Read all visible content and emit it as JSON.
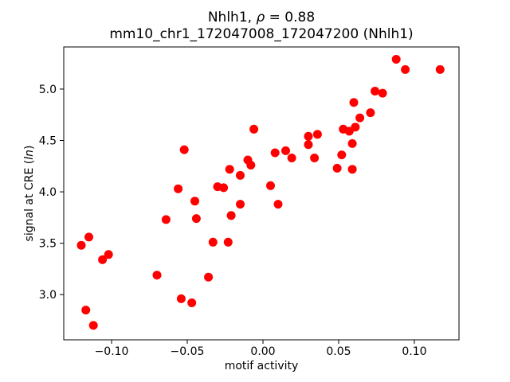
{
  "figure": {
    "title_line1": {
      "prefix": "Nhlh1, ",
      "rho": "ρ",
      "suffix": " = 0.88"
    },
    "title_line2": "mm10_chr1_172047008_172047200 (Nhlh1)",
    "xlabel": "motif activity",
    "ylabel": {
      "prefix": "signal at CRE (",
      "italic": "ln",
      "suffix": ")"
    },
    "colors": {
      "marker": "#ff0000",
      "axis": "#000000",
      "background": "#ffffff",
      "text": "#000000"
    }
  },
  "chart_data": {
    "type": "scatter",
    "title": "Nhlh1, ρ = 0.88",
    "subtitle": "mm10_chr1_172047008_172047200 (Nhlh1)",
    "xlabel": "motif activity",
    "ylabel": "signal at CRE (ln)",
    "correlation_rho": 0.88,
    "grid": false,
    "legend": null,
    "xlim": [
      -0.1316,
      0.1295
    ],
    "ylim": [
      2.56,
      5.41
    ],
    "xticks": {
      "values": [
        -0.1,
        -0.05,
        0.0,
        0.05,
        0.1
      ],
      "labels": [
        "−0.10",
        "−0.05",
        "0.00",
        "0.05",
        "0.10"
      ]
    },
    "yticks": {
      "values": [
        3.0,
        3.5,
        4.0,
        4.5,
        5.0
      ],
      "labels": [
        "3.0",
        "3.5",
        "4.0",
        "4.5",
        "5.0"
      ]
    },
    "marker": {
      "shape": "circle",
      "color": "#ff0000",
      "radius_px": 5.5
    },
    "points": [
      [
        -0.064,
        3.73
      ],
      [
        -0.115,
        3.56
      ],
      [
        -0.12,
        3.48
      ],
      [
        -0.102,
        3.39
      ],
      [
        -0.106,
        3.34
      ],
      [
        -0.07,
        3.19
      ],
      [
        -0.054,
        2.96
      ],
      [
        -0.047,
        2.92
      ],
      [
        -0.117,
        2.85
      ],
      [
        -0.112,
        2.7
      ],
      [
        -0.045,
        3.91
      ],
      [
        -0.044,
        3.74
      ],
      [
        -0.015,
        3.88
      ],
      [
        0.01,
        3.88
      ],
      [
        -0.021,
        3.77
      ],
      [
        -0.033,
        3.51
      ],
      [
        -0.023,
        3.51
      ],
      [
        -0.036,
        3.17
      ],
      [
        -0.006,
        4.61
      ],
      [
        0.03,
        4.54
      ],
      [
        0.036,
        4.56
      ],
      [
        0.03,
        4.46
      ],
      [
        0.008,
        4.38
      ],
      [
        0.015,
        4.4
      ],
      [
        0.019,
        4.33
      ],
      [
        0.034,
        4.33
      ],
      [
        -0.01,
        4.31
      ],
      [
        -0.008,
        4.26
      ],
      [
        -0.022,
        4.22
      ],
      [
        -0.015,
        4.16
      ],
      [
        -0.03,
        4.05
      ],
      [
        -0.026,
        4.04
      ],
      [
        0.005,
        4.06
      ],
      [
        0.088,
        5.29
      ],
      [
        0.094,
        5.19
      ],
      [
        0.117,
        5.19
      ],
      [
        0.074,
        4.98
      ],
      [
        0.079,
        4.96
      ],
      [
        0.06,
        4.87
      ],
      [
        0.071,
        4.77
      ],
      [
        0.064,
        4.72
      ],
      [
        0.053,
        4.61
      ],
      [
        0.057,
        4.59
      ],
      [
        0.061,
        4.63
      ],
      [
        0.059,
        4.47
      ],
      [
        0.052,
        4.36
      ],
      [
        0.049,
        4.23
      ],
      [
        0.059,
        4.22
      ],
      [
        -0.052,
        4.41
      ],
      [
        -0.056,
        4.03
      ]
    ]
  }
}
